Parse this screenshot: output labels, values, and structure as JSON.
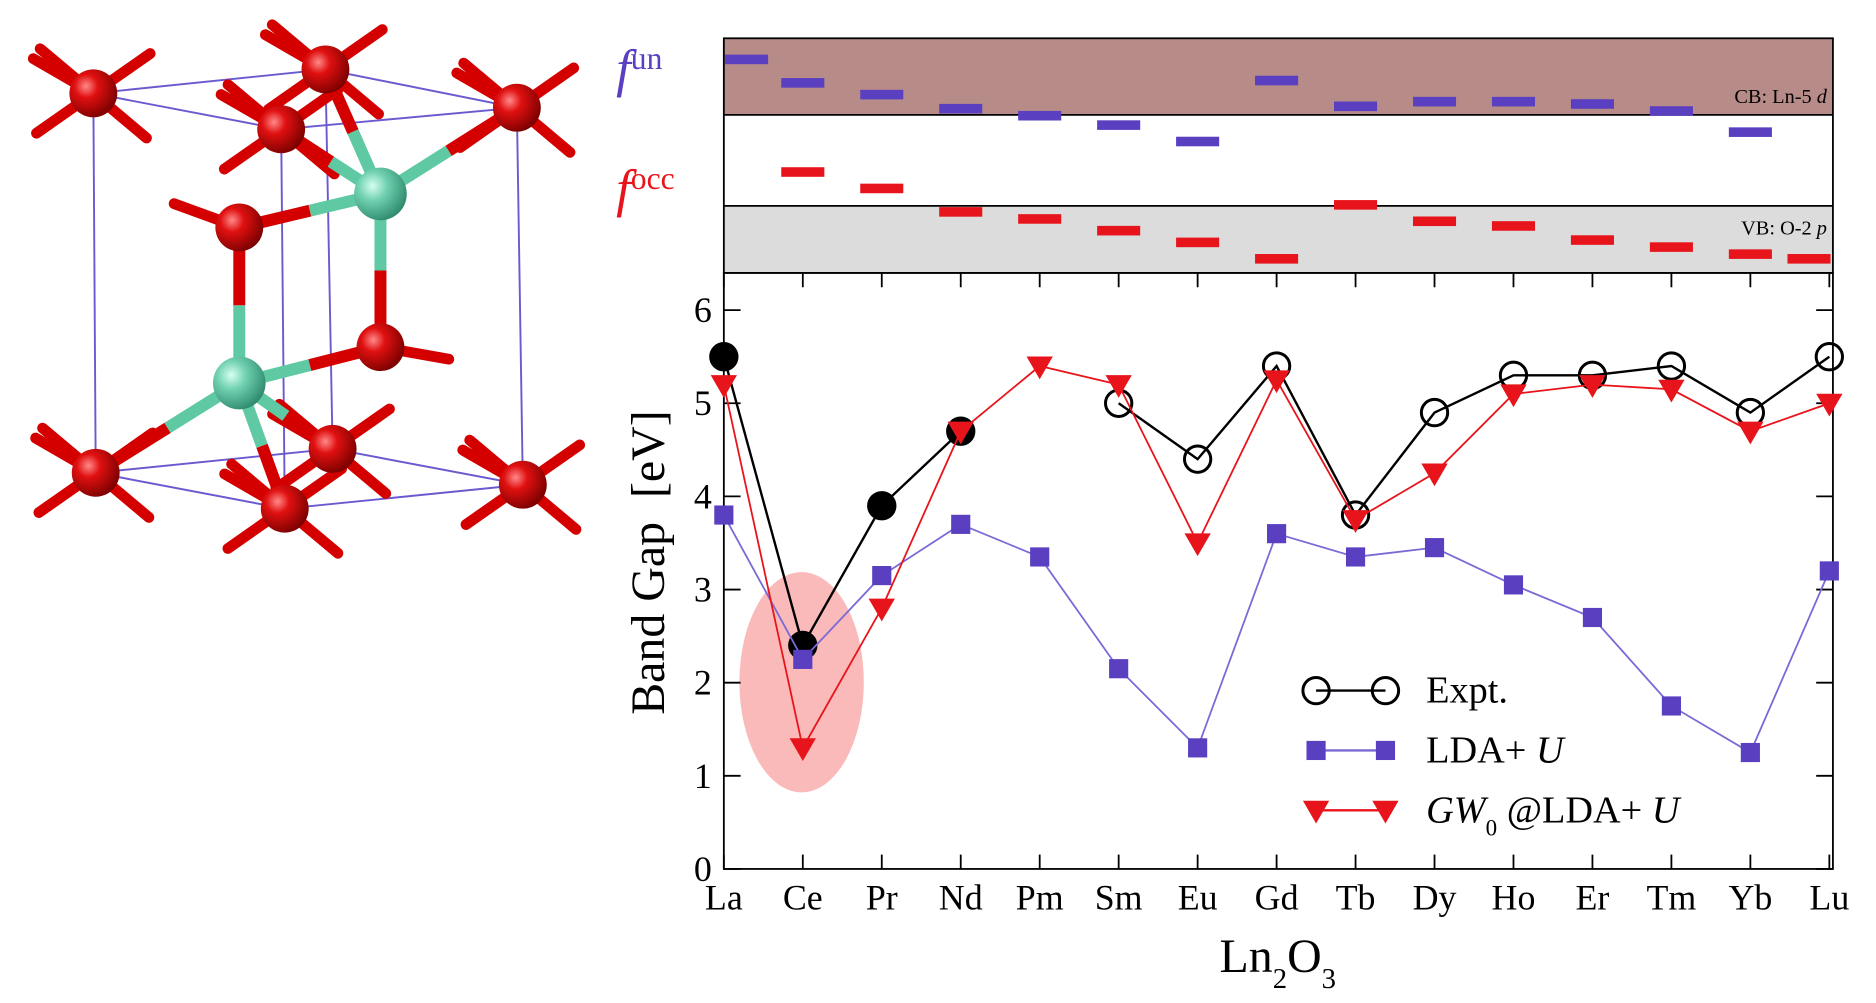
{
  "chart_data": [
    {
      "type": "levels",
      "ylim": [
        0,
        1
      ],
      "series": [
        {
          "name_parts": [
            {
              "text": "f",
              "italic": true
            },
            {
              "text": "un",
              "sup": true
            }
          ],
          "color": "#5a3fc0",
          "values": [
            0.91,
            0.81,
            0.76,
            0.7,
            0.67,
            0.63,
            0.56,
            0.82,
            0.71,
            0.73,
            0.73,
            0.72,
            0.69,
            0.6,
            null
          ]
        },
        {
          "name_parts": [
            {
              "text": "f",
              "italic": true
            },
            {
              "text": "occ",
              "sup": true
            }
          ],
          "color": "#e8141b",
          "values": [
            null,
            0.43,
            0.36,
            0.26,
            0.23,
            0.18,
            0.13,
            0.06,
            0.29,
            0.22,
            0.2,
            0.14,
            0.11,
            0.08,
            0.06
          ]
        }
      ],
      "band_labels": [
        [
          {
            "text": "CB: Ln-5 "
          },
          {
            "text": "d",
            "italic": true
          }
        ],
        [
          {
            "text": "VB: O-2 "
          },
          {
            "text": "p",
            "italic": true
          }
        ]
      ]
    },
    {
      "type": "line",
      "categories": [
        "La",
        "Ce",
        "Pr",
        "Nd",
        "Pm",
        "Sm",
        "Eu",
        "Gd",
        "Tb",
        "Dy",
        "Ho",
        "Er",
        "Tm",
        "Yb",
        "Lu"
      ],
      "xlabel_parts": [
        {
          "text": "Ln"
        },
        {
          "text": "2",
          "sub": true
        },
        {
          "text": "O"
        },
        {
          "text": "3",
          "sub": true
        }
      ],
      "ylabel": "Band Gap  [eV]",
      "ylim": [
        0,
        6.4
      ],
      "yticks": [
        0,
        1,
        2,
        3,
        4,
        5,
        6
      ],
      "series": [
        {
          "name_parts": [
            {
              "text": "Expt."
            }
          ],
          "color": "#000000",
          "marker": "circle",
          "filled": [
            true,
            true,
            true,
            true,
            null,
            false,
            false,
            false,
            false,
            false,
            false,
            false,
            false,
            false,
            false
          ],
          "values": [
            5.5,
            2.4,
            3.9,
            4.7,
            null,
            5.0,
            4.4,
            5.4,
            3.8,
            4.9,
            5.3,
            5.3,
            5.4,
            4.9,
            5.5
          ]
        },
        {
          "name_parts": [
            {
              "text": "LDA+ "
            },
            {
              "text": "U",
              "italic": true
            }
          ],
          "color": "#5a3fc0",
          "line_color": "#7a6ad6",
          "marker": "square",
          "values": [
            3.8,
            2.25,
            3.15,
            3.7,
            3.35,
            2.15,
            1.3,
            3.6,
            3.35,
            3.45,
            3.05,
            2.7,
            1.75,
            1.25,
            3.2
          ]
        },
        {
          "name_parts": [
            {
              "text": "GW",
              "italic": true
            },
            {
              "text": "0",
              "sub": true
            },
            {
              "text": " @LDA+ "
            },
            {
              "text": "U",
              "italic": true
            }
          ],
          "color": "#e8141b",
          "marker": "triangle-down",
          "values": [
            5.2,
            1.3,
            2.8,
            4.7,
            5.4,
            5.2,
            3.5,
            5.25,
            3.75,
            4.25,
            5.1,
            5.2,
            5.15,
            4.7,
            5.0
          ]
        }
      ]
    }
  ]
}
